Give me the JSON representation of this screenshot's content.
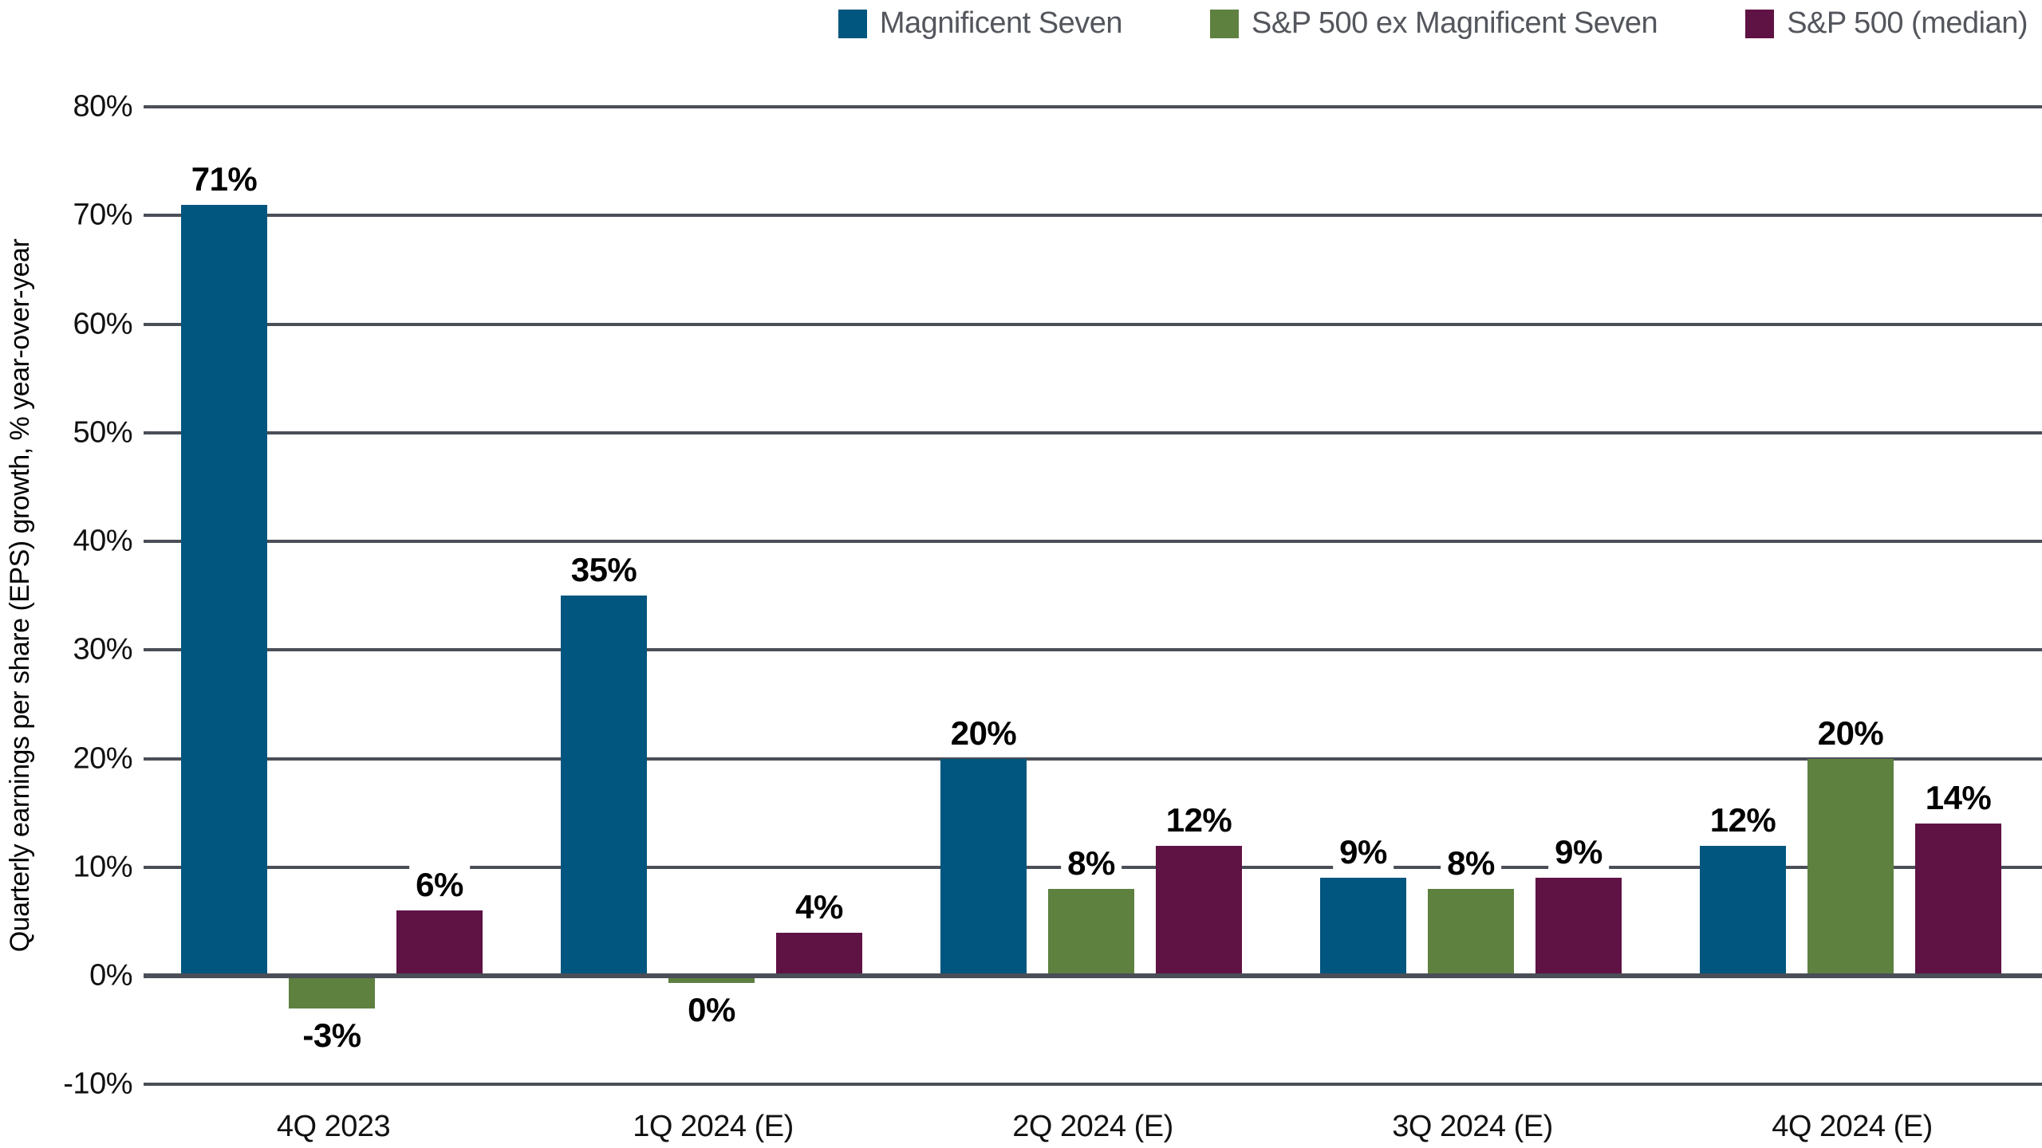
{
  "chart_data": {
    "type": "bar",
    "title": "",
    "categories": [
      "4Q 2023",
      "1Q 2024 (E)",
      "2Q 2024 (E)",
      "3Q 2024 (E)",
      "4Q 2024 (E)"
    ],
    "series": [
      {
        "name": "Magnificent Seven",
        "color": "#00567E",
        "values": [
          71,
          35,
          20,
          9,
          12
        ],
        "labels": [
          "71%",
          "35%",
          "20%",
          "9%",
          "12%"
        ]
      },
      {
        "name": "S&P 500 ex Magnificent Seven",
        "color": "#5E8140",
        "values": [
          -3,
          0,
          8,
          8,
          20
        ],
        "labels": [
          "-3%",
          "0%",
          "8%",
          "8%",
          "20%"
        ]
      },
      {
        "name": "S&P 500 (median)",
        "color": "#5F1244",
        "values": [
          6,
          4,
          12,
          9,
          14
        ],
        "labels": [
          "6%",
          "4%",
          "12%",
          "9%",
          "14%"
        ]
      }
    ],
    "xlabel": "",
    "ylabel": "Quarterly earnings per share (EPS) growth, % year-over-year",
    "ylim": [
      -10,
      80
    ],
    "yticks_values": [
      80,
      70,
      60,
      50,
      40,
      30,
      20,
      10,
      0,
      -10
    ],
    "yticks_labels": [
      "80%",
      "70%",
      "60%",
      "50%",
      "40%",
      "30%",
      "20%",
      "10%",
      "0%",
      "-10%"
    ],
    "grid": true,
    "gridline_color": "#4A4E57",
    "legend_position": "top-right",
    "legend_text_color": "#53565C"
  }
}
